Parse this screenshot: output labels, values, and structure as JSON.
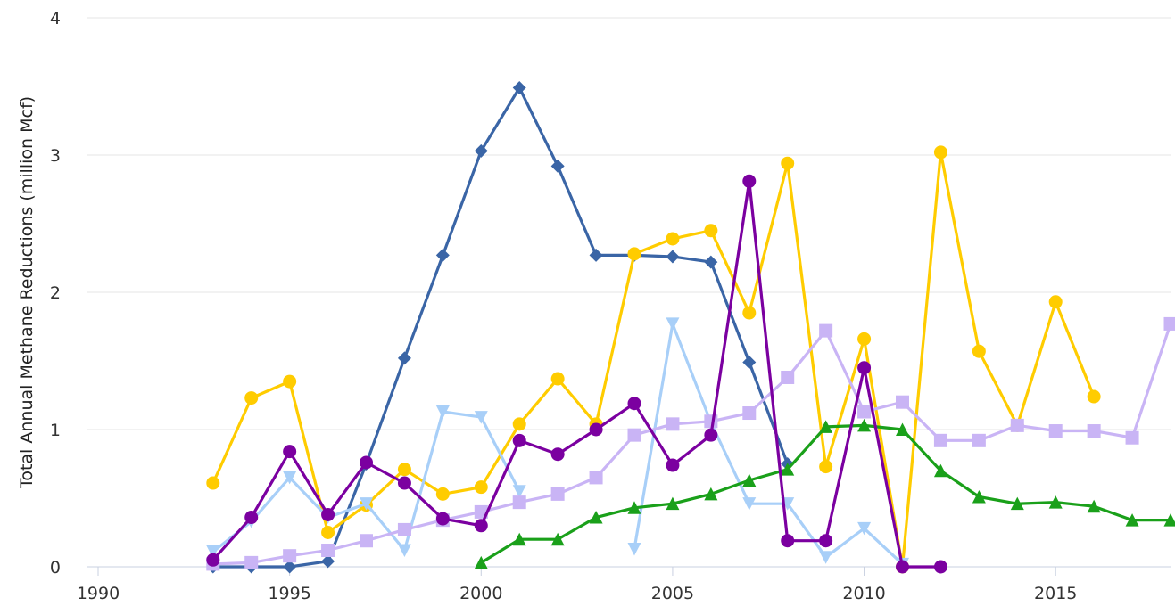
{
  "chart_data": {
    "type": "line",
    "title": "",
    "xlabel": "",
    "ylabel": "Total Annual Methane Reductions (million Mcf)",
    "xlim": [
      1990,
      2018
    ],
    "ylim": [
      0,
      4
    ],
    "x_ticks": [
      "1990",
      "1995",
      "2000",
      "2005",
      "2010",
      "2015"
    ],
    "y_ticks": [
      "0",
      "1",
      "2",
      "3",
      "4"
    ],
    "grid": "horizontal",
    "legend": "none",
    "series": [
      {
        "color": "#3a65a6",
        "marker": "diamond",
        "points": [
          [
            1993,
            0.0
          ],
          [
            1994,
            0.0
          ],
          [
            1995,
            0.0
          ],
          [
            1996,
            0.04
          ],
          [
            1997,
            0.75
          ],
          [
            1998,
            1.52
          ],
          [
            1999,
            2.27
          ],
          [
            2000,
            3.03
          ],
          [
            2001,
            3.49
          ],
          [
            2002,
            2.92
          ],
          [
            2003,
            2.27
          ],
          [
            2004,
            2.27
          ],
          [
            2005,
            2.26
          ],
          [
            2006,
            2.22
          ],
          [
            2007,
            1.49
          ],
          [
            2008,
            0.75
          ]
        ]
      },
      {
        "color": "#ffcc00",
        "marker": "circle",
        "points": [
          [
            1993,
            0.61
          ],
          [
            1994,
            1.23
          ],
          [
            1995,
            1.35
          ],
          [
            1996,
            0.25
          ],
          [
            1997,
            0.45
          ],
          [
            1998,
            0.71
          ],
          [
            1999,
            0.53
          ],
          [
            2000,
            0.58
          ],
          [
            2001,
            1.04
          ],
          [
            2002,
            1.37
          ],
          [
            2003,
            1.04
          ],
          [
            2004,
            2.28
          ],
          [
            2005,
            2.39
          ],
          [
            2006,
            2.45
          ],
          [
            2007,
            1.85
          ],
          [
            2008,
            2.94
          ],
          [
            2009,
            0.73
          ],
          [
            2010,
            1.66
          ],
          [
            2011,
            0.0
          ],
          [
            2012,
            3.02
          ],
          [
            2013,
            1.57
          ],
          [
            2014,
            1.03
          ],
          [
            2015,
            1.93
          ],
          [
            2016,
            1.24
          ]
        ]
      },
      {
        "color": "#a8cff8",
        "marker": "triangle-down",
        "points": [
          [
            1993,
            0.11
          ],
          [
            1994,
            0.33
          ],
          [
            1995,
            0.65
          ],
          [
            1996,
            0.36
          ],
          [
            1997,
            0.46
          ],
          [
            1998,
            0.12
          ],
          [
            1999,
            1.13
          ],
          [
            2000,
            1.09
          ],
          [
            2001,
            0.55
          ],
          [
            2002,
            null
          ],
          [
            2003,
            null
          ],
          [
            2004,
            0.13
          ],
          [
            2005,
            1.77
          ],
          [
            2006,
            1.05
          ],
          [
            2007,
            0.46
          ],
          [
            2008,
            0.46
          ],
          [
            2009,
            0.07
          ],
          [
            2010,
            0.28
          ],
          [
            2011,
            0.02
          ]
        ]
      },
      {
        "color": "#c9b4f5",
        "marker": "square",
        "points": [
          [
            1993,
            0.02
          ],
          [
            1994,
            0.03
          ],
          [
            1995,
            0.08
          ],
          [
            1996,
            0.12
          ],
          [
            1997,
            0.19
          ],
          [
            1998,
            0.27
          ],
          [
            1999,
            0.34
          ],
          [
            2000,
            0.4
          ],
          [
            2001,
            0.47
          ],
          [
            2002,
            0.53
          ],
          [
            2003,
            0.65
          ],
          [
            2004,
            0.96
          ],
          [
            2005,
            1.04
          ],
          [
            2006,
            1.06
          ],
          [
            2007,
            1.12
          ],
          [
            2008,
            1.38
          ],
          [
            2009,
            1.72
          ],
          [
            2010,
            1.13
          ],
          [
            2011,
            1.2
          ],
          [
            2012,
            0.92
          ],
          [
            2013,
            0.92
          ],
          [
            2014,
            1.03
          ],
          [
            2015,
            0.99
          ],
          [
            2016,
            0.99
          ],
          [
            2017,
            0.94
          ],
          [
            2018,
            1.77
          ]
        ]
      },
      {
        "color": "#1aa01a",
        "marker": "triangle-up",
        "points": [
          [
            2000,
            0.03
          ],
          [
            2001,
            0.2
          ],
          [
            2002,
            0.2
          ],
          [
            2003,
            0.36
          ],
          [
            2004,
            0.43
          ],
          [
            2005,
            0.46
          ],
          [
            2006,
            0.53
          ],
          [
            2007,
            0.63
          ],
          [
            2008,
            0.71
          ],
          [
            2009,
            1.02
          ],
          [
            2010,
            1.03
          ],
          [
            2011,
            1.0
          ],
          [
            2012,
            0.7
          ],
          [
            2013,
            0.51
          ],
          [
            2014,
            0.46
          ],
          [
            2015,
            0.47
          ],
          [
            2016,
            0.44
          ],
          [
            2017,
            0.34
          ],
          [
            2018,
            0.34
          ]
        ]
      },
      {
        "color": "#7b00a0",
        "marker": "circle",
        "points": [
          [
            1993,
            0.05
          ],
          [
            1994,
            0.36
          ],
          [
            1995,
            0.84
          ],
          [
            1996,
            0.38
          ],
          [
            1997,
            0.76
          ],
          [
            1998,
            0.61
          ],
          [
            1999,
            0.35
          ],
          [
            2000,
            0.3
          ],
          [
            2001,
            0.92
          ],
          [
            2002,
            0.82
          ],
          [
            2003,
            1.0
          ],
          [
            2004,
            1.19
          ],
          [
            2005,
            0.74
          ],
          [
            2006,
            0.96
          ],
          [
            2007,
            2.81
          ],
          [
            2008,
            0.19
          ],
          [
            2009,
            0.19
          ],
          [
            2010,
            1.45
          ],
          [
            2011,
            0.0
          ],
          [
            2012,
            0.0
          ]
        ]
      }
    ]
  }
}
